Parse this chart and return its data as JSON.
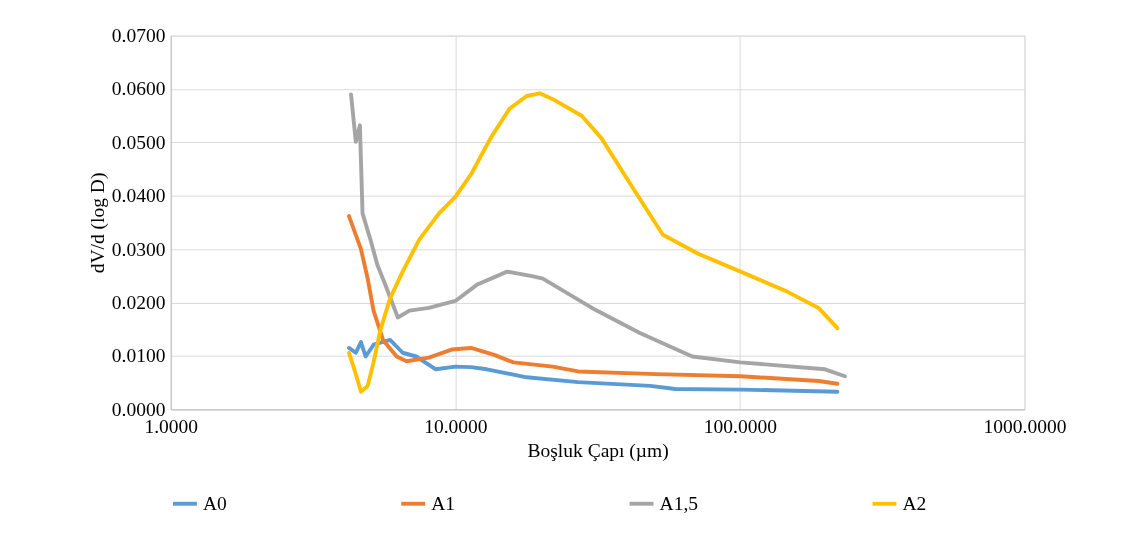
{
  "chart_data": {
    "type": "line",
    "xlabel": "Boşluk Çapı (µm)",
    "ylabel": "dV/d (log D)",
    "log": "x",
    "xlim": [
      1,
      1000
    ],
    "xticks": [
      {
        "value": 1,
        "label": "1.0000"
      },
      {
        "value": 10,
        "label": "10.0000"
      },
      {
        "value": 100,
        "label": "100.0000"
      },
      {
        "value": 1000,
        "label": "1000.0000"
      }
    ],
    "ylim": [
      0,
      0.07
    ],
    "yticks": [
      {
        "value": 0,
        "label": "0.0000"
      },
      {
        "value": 0.01,
        "label": "0.0100"
      },
      {
        "value": 0.02,
        "label": "0.0200"
      },
      {
        "value": 0.03,
        "label": "0.0300"
      },
      {
        "value": 0.04,
        "label": "0.0400"
      },
      {
        "value": 0.05,
        "label": "0.0500"
      },
      {
        "value": 0.06,
        "label": "0.0600"
      },
      {
        "value": 0.07,
        "label": "0.0700"
      }
    ],
    "grid": true,
    "legend": "bottom",
    "marker": "none",
    "line_style": "solid",
    "series": [
      {
        "name": "A0",
        "color": "#5b9bd5",
        "x": [
          4.23,
          4.47,
          4.66,
          4.84,
          5.16,
          5.9,
          6.53,
          7.29,
          8.54,
          10.0,
          11.35,
          12.9,
          17.8,
          27.0,
          48.4,
          59.3,
          100.5,
          220
        ],
        "values": [
          0.0115,
          0.0106,
          0.0126,
          0.0099,
          0.0121,
          0.013,
          0.0106,
          0.0099,
          0.0075,
          0.008,
          0.0079,
          0.0075,
          0.006,
          0.0051,
          0.0044,
          0.0038,
          0.0037,
          0.0033
        ]
      },
      {
        "name": "A1",
        "color": "#ed7d31",
        "x": [
          4.23,
          4.66,
          4.92,
          5.16,
          5.57,
          6.22,
          6.74,
          8.07,
          9.7,
          11.35,
          13.7,
          16.0,
          22.0,
          27.0,
          50.7,
          100.5,
          189,
          220
        ],
        "values": [
          0.0362,
          0.03,
          0.0245,
          0.0185,
          0.013,
          0.0099,
          0.009,
          0.0097,
          0.0112,
          0.0115,
          0.0102,
          0.0088,
          0.008,
          0.0071,
          0.0066,
          0.0062,
          0.0053,
          0.0048
        ]
      },
      {
        "name": "A1,5",
        "color": "#a5a5a5",
        "x": [
          4.3,
          4.47,
          4.62,
          4.72,
          5.03,
          5.32,
          5.67,
          6.28,
          6.9,
          8.07,
          10.0,
          11.96,
          15.2,
          18.8,
          20.3,
          30.2,
          44.5,
          68.0,
          100.5,
          199,
          234
        ],
        "values": [
          0.059,
          0.0501,
          0.0532,
          0.0367,
          0.0318,
          0.0271,
          0.0234,
          0.0172,
          0.0185,
          0.019,
          0.0203,
          0.0234,
          0.0258,
          0.0249,
          0.0245,
          0.019,
          0.0143,
          0.0099,
          0.0088,
          0.0075,
          0.0062
        ]
      },
      {
        "name": "A2",
        "color": "#ffc000",
        "x": [
          4.23,
          4.47,
          4.66,
          4.92,
          5.16,
          5.45,
          5.9,
          6.53,
          7.47,
          8.76,
          10.0,
          11.35,
          13.3,
          15.5,
          17.8,
          19.8,
          22.0,
          27.8,
          32.6,
          41.2,
          53.6,
          71.7,
          100.5,
          146,
          189,
          220
        ],
        "values": [
          0.0106,
          0.0066,
          0.0033,
          0.0044,
          0.0088,
          0.0148,
          0.0208,
          0.0258,
          0.0318,
          0.0367,
          0.0398,
          0.044,
          0.0508,
          0.0563,
          0.0587,
          0.0592,
          0.0581,
          0.055,
          0.0508,
          0.0422,
          0.0327,
          0.0291,
          0.0258,
          0.0221,
          0.019,
          0.0152
        ]
      }
    ]
  }
}
